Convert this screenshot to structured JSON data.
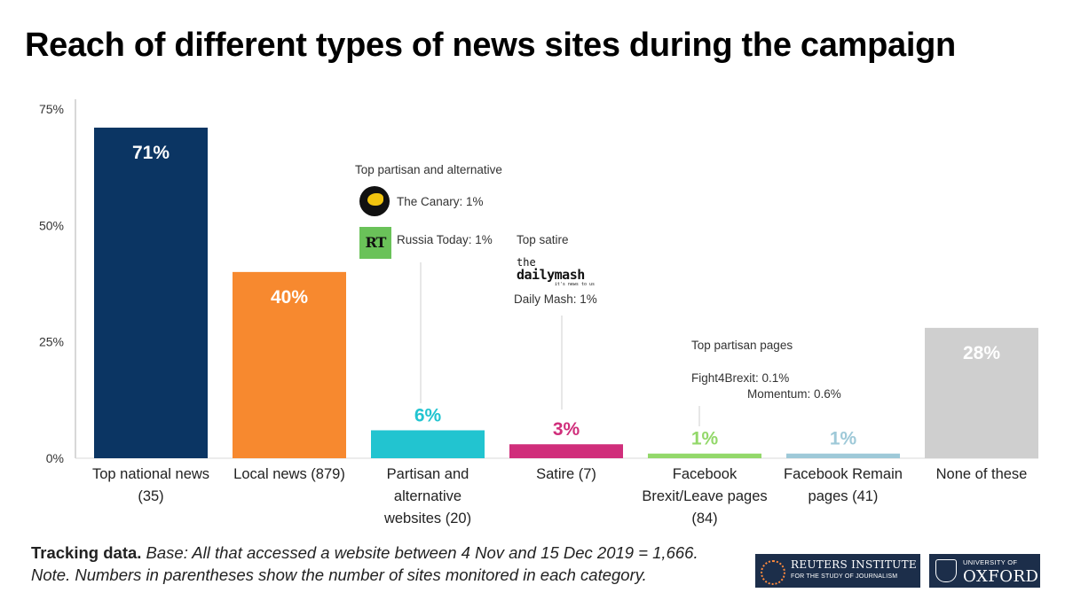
{
  "title": "Reach of different types of news sites during the campaign",
  "chart_data": {
    "type": "bar",
    "title": "Reach of different types of news sites during the campaign",
    "xlabel": "",
    "ylabel": "",
    "ylim": [
      0,
      75
    ],
    "yticks": [
      0,
      25,
      50,
      75
    ],
    "ytick_labels": [
      "0%",
      "25%",
      "50%",
      "75%"
    ],
    "grid": false,
    "categories": [
      [
        "Top national news",
        "(35)"
      ],
      [
        "Local news (879)"
      ],
      [
        "Partisan and",
        "alternative",
        "websites (20)"
      ],
      [
        "Satire (7)"
      ],
      [
        "Facebook",
        "Brexit/Leave pages",
        "(84)"
      ],
      [
        "Facebook Remain",
        "pages (41)"
      ],
      [
        "None of these"
      ]
    ],
    "values": [
      71,
      40,
      6,
      3,
      1,
      1,
      28
    ],
    "data_labels": [
      "71%",
      "40%",
      "6%",
      "3%",
      "1%",
      "1%",
      "28%"
    ],
    "colors": [
      "#0b3563",
      "#f7892f",
      "#22c4d0",
      "#d02e7b",
      "#93d86a",
      "#9ec9d8",
      "#cfcfcf"
    ]
  },
  "annotations": {
    "partisan_header": "Top partisan and alternative",
    "canary": "The Canary: 1%",
    "rt": "Russia Today: 1%",
    "satire_header": "Top satire",
    "daily_mash": "Daily Mash: 1%",
    "pages_header": "Top partisan pages",
    "fight4brexit": "Fight4Brexit: 0.1%",
    "momentum": "Momentum: 0.6%"
  },
  "logos": {
    "rt_text": "RT",
    "dailymash_line1": "the",
    "dailymash_line2": "dailymash",
    "dailymash_tag": "it's news to us"
  },
  "footer": {
    "bold": "Tracking data.",
    "line1": " Base: All that accessed a website between 4 Nov and 15 Dec 2019 = 1,666.",
    "line2": "Note. Numbers in parentheses show the number of sites monitored in each category."
  },
  "branding": {
    "reuters_name": "REUTERS INSTITUTE",
    "reuters_sub": "FOR THE STUDY OF JOURNALISM",
    "oxford_top": "UNIVERSITY OF",
    "oxford_name": "OXFORD"
  }
}
